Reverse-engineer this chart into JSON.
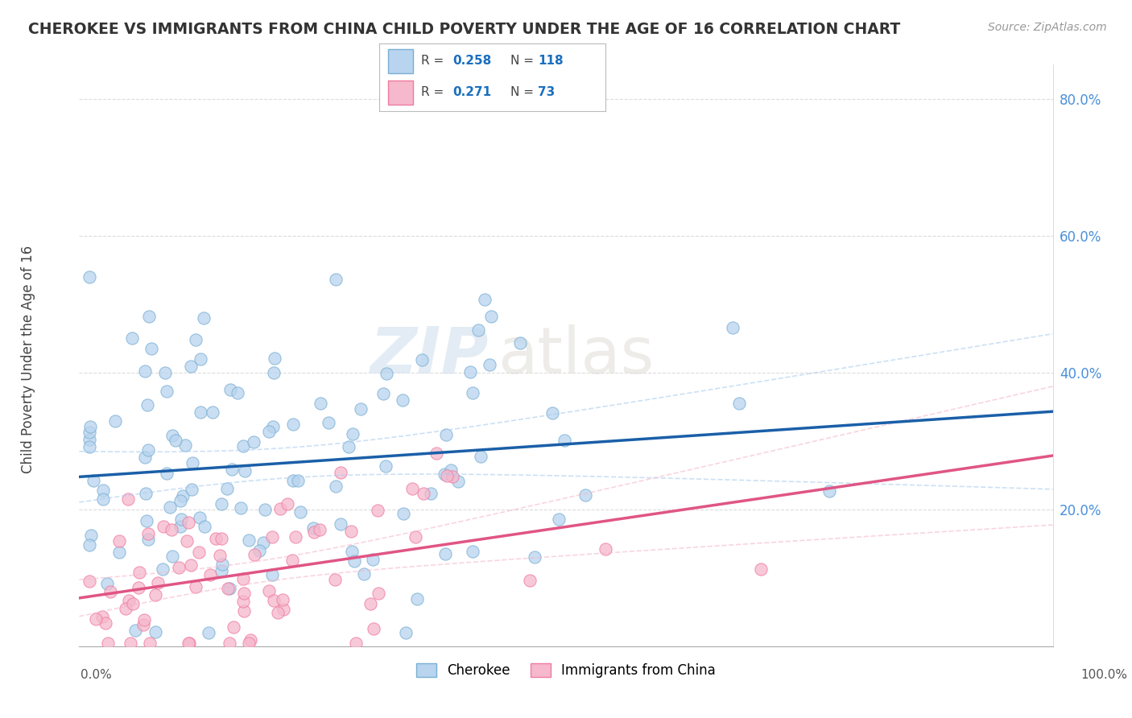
{
  "title": "CHEROKEE VS IMMIGRANTS FROM CHINA CHILD POVERTY UNDER THE AGE OF 16 CORRELATION CHART",
  "source": "Source: ZipAtlas.com",
  "ylabel": "Child Poverty Under the Age of 16",
  "xmin": 0.0,
  "xmax": 1.0,
  "ymin": 0.0,
  "ymax": 0.85,
  "cherokee_R": 0.258,
  "cherokee_N": 118,
  "china_R": 0.271,
  "china_N": 73,
  "cherokee_dot_fill": "#b8d4ee",
  "cherokee_dot_edge": "#7aafd4",
  "china_dot_fill": "#f5b8cc",
  "china_dot_edge": "#f07ba0",
  "trend_cherokee_color": "#1a5fa8",
  "trend_china_color": "#e05585",
  "ci_cherokee_color": "#aaccee",
  "ci_china_color": "#f5b8cc",
  "legend_label_cherokee": "Cherokee",
  "legend_label_china": "Immigrants from China",
  "watermark_zip": "ZIP",
  "watermark_atlas": "atlas",
  "background_color": "#ffffff",
  "grid_color": "#cccccc",
  "ytick_color": "#4a90d9",
  "title_color": "#333333",
  "source_color": "#999999"
}
